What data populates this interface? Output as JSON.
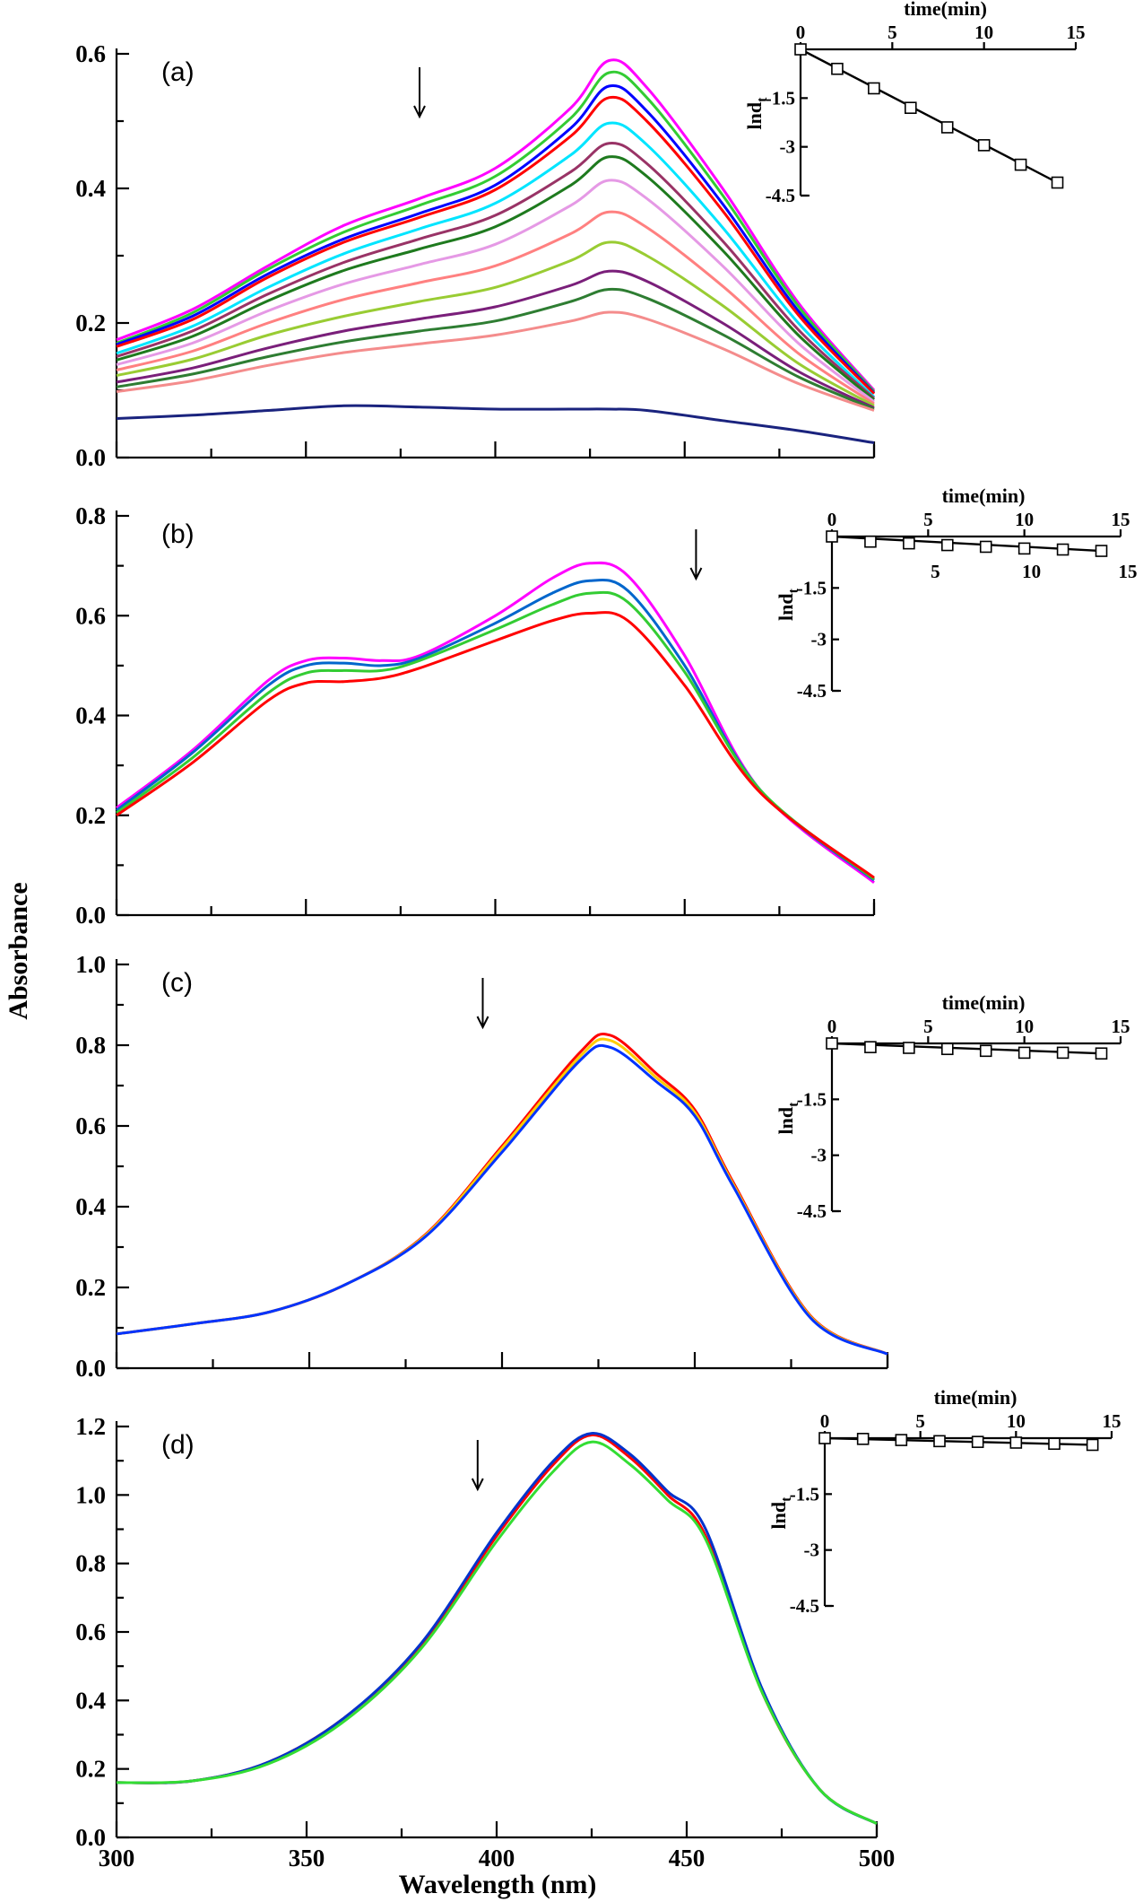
{
  "figure": {
    "xlabel": "Wavelength (nm)",
    "ylabel": "Absorbance",
    "x_tick_labels": [
      "300",
      "350",
      "400",
      "450",
      "500"
    ]
  },
  "chart_data": [
    {
      "type": "line",
      "panel_label": "(a)",
      "xlabel": "Wavelength (nm)",
      "ylabel": "Absorbance",
      "xlim": [
        300,
        500
      ],
      "ylim": [
        0,
        0.6
      ],
      "y_ticks": [
        0.0,
        0.2,
        0.4,
        0.6
      ],
      "y_tick_labels": [
        "0.0",
        "0.2",
        "0.4",
        "0.6"
      ],
      "arrow_at_x": 380,
      "series": [
        {
          "color": "#ff00ff",
          "values": [
            0.175,
            0.22,
            0.285,
            0.345,
            0.385,
            0.43,
            0.52,
            0.59,
            0.55,
            0.4,
            0.23,
            0.1
          ]
        },
        {
          "color": "#33cc33",
          "values": [
            0.17,
            0.215,
            0.28,
            0.335,
            0.375,
            0.418,
            0.505,
            0.572,
            0.535,
            0.39,
            0.225,
            0.098
          ]
        },
        {
          "color": "#0000ff",
          "values": [
            0.168,
            0.21,
            0.273,
            0.325,
            0.363,
            0.405,
            0.49,
            0.552,
            0.515,
            0.377,
            0.218,
            0.096
          ]
        },
        {
          "color": "#ff0000",
          "values": [
            0.165,
            0.205,
            0.268,
            0.32,
            0.357,
            0.398,
            0.478,
            0.535,
            0.5,
            0.367,
            0.212,
            0.095
          ]
        },
        {
          "color": "#00e5ff",
          "values": [
            0.155,
            0.195,
            0.253,
            0.303,
            0.34,
            0.378,
            0.45,
            0.497,
            0.465,
            0.342,
            0.2,
            0.09
          ]
        },
        {
          "color": "#993366",
          "values": [
            0.15,
            0.188,
            0.243,
            0.29,
            0.325,
            0.36,
            0.425,
            0.467,
            0.437,
            0.322,
            0.19,
            0.088
          ]
        },
        {
          "color": "#1e7a1e",
          "values": [
            0.145,
            0.18,
            0.233,
            0.278,
            0.31,
            0.343,
            0.405,
            0.447,
            0.418,
            0.308,
            0.182,
            0.086
          ]
        },
        {
          "color": "#e599e5",
          "values": [
            0.138,
            0.17,
            0.218,
            0.258,
            0.287,
            0.317,
            0.375,
            0.412,
            0.385,
            0.285,
            0.17,
            0.083
          ]
        },
        {
          "color": "#ff8080",
          "values": [
            0.13,
            0.158,
            0.2,
            0.235,
            0.26,
            0.285,
            0.333,
            0.365,
            0.342,
            0.255,
            0.155,
            0.08
          ]
        },
        {
          "color": "#99cc33",
          "values": [
            0.122,
            0.146,
            0.182,
            0.21,
            0.232,
            0.253,
            0.293,
            0.32,
            0.3,
            0.226,
            0.14,
            0.077
          ]
        },
        {
          "color": "#7a1f7a",
          "values": [
            0.112,
            0.133,
            0.163,
            0.188,
            0.206,
            0.224,
            0.256,
            0.277,
            0.262,
            0.2,
            0.128,
            0.074
          ]
        },
        {
          "color": "#2e7d32",
          "values": [
            0.105,
            0.124,
            0.15,
            0.172,
            0.188,
            0.203,
            0.232,
            0.25,
            0.237,
            0.183,
            0.12,
            0.072
          ]
        },
        {
          "color": "#f48c8c",
          "values": [
            0.098,
            0.114,
            0.137,
            0.156,
            0.169,
            0.182,
            0.203,
            0.216,
            0.206,
            0.162,
            0.11,
            0.07
          ]
        },
        {
          "color": "#1a237e",
          "values": [
            0.058,
            0.063,
            0.07,
            0.077,
            0.075,
            0.072,
            0.072,
            0.072,
            0.07,
            0.055,
            0.04,
            0.022
          ]
        }
      ],
      "x": [
        300,
        320,
        340,
        360,
        380,
        400,
        420,
        430,
        440,
        460,
        480,
        500
      ],
      "inset": {
        "type": "scatter",
        "xlabel": "time(min)",
        "ylabel": "lnd",
        "ylabel_sub": "t",
        "xlim": [
          0,
          15
        ],
        "ylim": [
          -4.5,
          0
        ],
        "x_ticks": [
          0,
          5,
          10,
          15
        ],
        "x_tick_labels": [
          "0",
          "5",
          "10",
          "15"
        ],
        "y_ticks": [
          -1.5,
          -3,
          -4.5
        ],
        "y_tick_labels": [
          "-1.5",
          "-3",
          "-4.5"
        ],
        "x": [
          0,
          2,
          4,
          6,
          8,
          10,
          12,
          14
        ],
        "y": [
          0,
          -0.6,
          -1.2,
          -1.8,
          -2.4,
          -2.95,
          -3.55,
          -4.1
        ]
      }
    },
    {
      "type": "line",
      "panel_label": "(b)",
      "xlabel": "Wavelength (nm)",
      "ylabel": "Absorbance",
      "xlim": [
        300,
        500
      ],
      "ylim": [
        0,
        0.8
      ],
      "y_ticks": [
        0.0,
        0.2,
        0.4,
        0.6,
        0.8
      ],
      "y_tick_labels": [
        "0.0",
        "0.2",
        "0.4",
        "0.6",
        "0.8"
      ],
      "arrow_at_x": 453,
      "x": [
        300,
        320,
        340,
        350,
        360,
        370,
        380,
        400,
        415,
        425,
        435,
        450,
        470,
        500
      ],
      "series": [
        {
          "color": "#ff00ff",
          "values": [
            0.215,
            0.33,
            0.47,
            0.51,
            0.515,
            0.51,
            0.52,
            0.6,
            0.675,
            0.705,
            0.68,
            0.52,
            0.25,
            0.065
          ]
        },
        {
          "color": "#0066cc",
          "values": [
            0.21,
            0.325,
            0.46,
            0.5,
            0.505,
            0.5,
            0.515,
            0.585,
            0.645,
            0.67,
            0.65,
            0.5,
            0.25,
            0.07
          ]
        },
        {
          "color": "#33cc33",
          "values": [
            0.205,
            0.315,
            0.445,
            0.485,
            0.49,
            0.49,
            0.51,
            0.572,
            0.622,
            0.645,
            0.627,
            0.487,
            0.25,
            0.072
          ]
        },
        {
          "color": "#ff0000",
          "values": [
            0.2,
            0.305,
            0.43,
            0.465,
            0.468,
            0.475,
            0.495,
            0.55,
            0.59,
            0.605,
            0.59,
            0.46,
            0.245,
            0.075
          ]
        }
      ],
      "inset": {
        "type": "scatter",
        "xlabel": "time(min)",
        "ylabel": "lnd",
        "ylabel_sub": "t",
        "xlim": [
          0,
          15
        ],
        "ylim": [
          -4.5,
          0
        ],
        "x_ticks": [
          0,
          5,
          10,
          15
        ],
        "x_tick_labels": [
          "0",
          "5",
          "10",
          "15"
        ],
        "x_tick_labels_below": [
          "5",
          "10",
          "15"
        ],
        "y_ticks": [
          -1.5,
          -3,
          -4.5
        ],
        "y_tick_labels": [
          "-1.5",
          "-3",
          "-4.5"
        ],
        "x": [
          0,
          2,
          4,
          6,
          8,
          10,
          12,
          14
        ],
        "y": [
          0,
          -0.15,
          -0.2,
          -0.25,
          -0.3,
          -0.35,
          -0.38,
          -0.42
        ]
      }
    },
    {
      "type": "line",
      "panel_label": "(c)",
      "xlabel": "Wavelength (nm)",
      "ylabel": "Absorbance",
      "xlim": [
        300,
        500
      ],
      "ylim": [
        0,
        1.0
      ],
      "y_ticks": [
        0.0,
        0.2,
        0.4,
        0.6,
        0.8,
        1.0
      ],
      "y_tick_labels": [
        "0.0",
        "0.2",
        "0.4",
        "0.6",
        "0.8",
        "1.0"
      ],
      "arrow_at_x": 395,
      "x": [
        300,
        320,
        340,
        360,
        380,
        400,
        420,
        428,
        440,
        450,
        460,
        480,
        500
      ],
      "series": [
        {
          "color": "#ff0000",
          "values": [
            0.085,
            0.11,
            0.14,
            0.21,
            0.33,
            0.55,
            0.78,
            0.825,
            0.73,
            0.64,
            0.46,
            0.13,
            0.035
          ]
        },
        {
          "color": "#ffcc00",
          "values": [
            0.085,
            0.11,
            0.14,
            0.21,
            0.328,
            0.545,
            0.77,
            0.812,
            0.72,
            0.633,
            0.455,
            0.128,
            0.035
          ]
        },
        {
          "color": "#0033ff",
          "values": [
            0.085,
            0.11,
            0.14,
            0.21,
            0.325,
            0.535,
            0.76,
            0.795,
            0.71,
            0.625,
            0.45,
            0.125,
            0.035
          ]
        }
      ],
      "inset": {
        "type": "scatter",
        "xlabel": "time(min)",
        "ylabel": "lnd",
        "ylabel_sub": "t",
        "xlim": [
          0,
          15
        ],
        "ylim": [
          -4.5,
          0
        ],
        "x_ticks": [
          0,
          5,
          10,
          15
        ],
        "x_tick_labels": [
          "0",
          "5",
          "10",
          "15"
        ],
        "y_ticks": [
          -1.5,
          -3,
          -4.5
        ],
        "y_tick_labels": [
          "-1.5",
          "-3",
          "-4.5"
        ],
        "x": [
          0,
          2,
          4,
          6,
          8,
          10,
          12,
          14
        ],
        "y": [
          0,
          -0.1,
          -0.12,
          -0.15,
          -0.2,
          -0.25,
          -0.25,
          -0.27
        ]
      }
    },
    {
      "type": "line",
      "panel_label": "(d)",
      "xlabel": "Wavelength (nm)",
      "ylabel": "Absorbance",
      "xlim": [
        300,
        500
      ],
      "ylim": [
        0,
        1.2
      ],
      "y_ticks": [
        0.0,
        0.2,
        0.4,
        0.6,
        0.8,
        1.0,
        1.2
      ],
      "y_tick_labels": [
        "0.0",
        "0.2",
        "0.4",
        "0.6",
        "0.8",
        "1.0",
        "1.2"
      ],
      "arrow_at_x": 395,
      "x": [
        300,
        320,
        340,
        360,
        380,
        400,
        415,
        425,
        435,
        445,
        455,
        470,
        485,
        500
      ],
      "series": [
        {
          "color": "#ff0000",
          "values": [
            0.16,
            0.165,
            0.22,
            0.35,
            0.56,
            0.88,
            1.09,
            1.175,
            1.11,
            1.0,
            0.88,
            0.42,
            0.14,
            0.04
          ]
        },
        {
          "color": "#0033cc",
          "values": [
            0.16,
            0.165,
            0.22,
            0.35,
            0.565,
            0.89,
            1.1,
            1.18,
            1.12,
            1.01,
            0.9,
            0.43,
            0.14,
            0.04
          ]
        },
        {
          "color": "#33dd33",
          "values": [
            0.16,
            0.165,
            0.215,
            0.34,
            0.55,
            0.865,
            1.07,
            1.155,
            1.09,
            0.985,
            0.87,
            0.42,
            0.14,
            0.04
          ]
        }
      ],
      "inset": {
        "type": "scatter",
        "xlabel": "time(min)",
        "ylabel": "lnd",
        "ylabel_sub": "t",
        "xlim": [
          0,
          15
        ],
        "ylim": [
          -4.5,
          0
        ],
        "x_ticks": [
          0,
          5,
          10,
          15
        ],
        "x_tick_labels": [
          "0",
          "5",
          "10",
          "15"
        ],
        "y_ticks": [
          -1.5,
          -3,
          -4.5
        ],
        "y_tick_labels": [
          "-1.5",
          "-3",
          "-4.5"
        ],
        "x": [
          0,
          2,
          4,
          6,
          8,
          10,
          12,
          14
        ],
        "y": [
          0,
          -0.02,
          -0.05,
          -0.08,
          -0.1,
          -0.12,
          -0.15,
          -0.18
        ]
      }
    }
  ]
}
